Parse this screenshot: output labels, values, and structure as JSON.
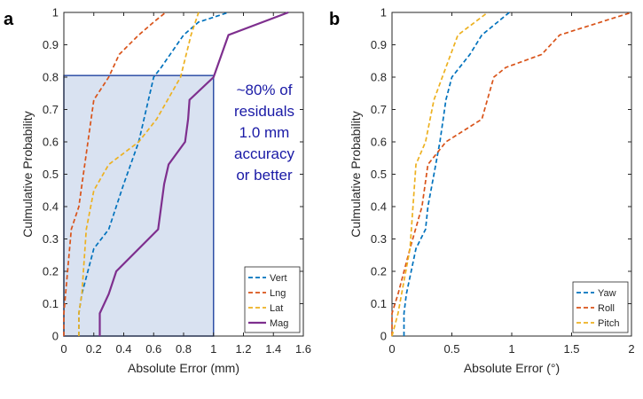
{
  "chart_data": [
    {
      "panel": "a",
      "type": "line",
      "xlabel": "Absolute Error (mm)",
      "ylabel": "Culmulative Probability",
      "xlim": [
        0,
        1.6
      ],
      "ylim": [
        0,
        1
      ],
      "xticks": [
        "0",
        "0.2",
        "0.4",
        "0.6",
        "0.8",
        "1",
        "1.2",
        "1.4",
        "1.6"
      ],
      "yticks": [
        "0",
        "0.1",
        "0.2",
        "0.3",
        "0.4",
        "0.5",
        "0.6",
        "0.7",
        "0.8",
        "0.9",
        "1"
      ],
      "annotation": [
        "~80% of",
        "residuals",
        "1.0 mm",
        "accuracy",
        "or better"
      ],
      "highlight_region": {
        "x": [
          0,
          1.0
        ],
        "y": [
          0,
          0.805
        ],
        "fill": "#d9e2f1",
        "stroke": "#2e4fa6"
      },
      "legend_position": "bottom-right",
      "series": [
        {
          "name": "Vert",
          "color": "#0072BD",
          "dash": "dashed",
          "points": [
            [
              0.1,
              0
            ],
            [
              0.1,
              0.07
            ],
            [
              0.12,
              0.13
            ],
            [
              0.2,
              0.27
            ],
            [
              0.3,
              0.33
            ],
            [
              0.4,
              0.47
            ],
            [
              0.5,
              0.6
            ],
            [
              0.6,
              0.8
            ],
            [
              0.65,
              0.83
            ],
            [
              0.8,
              0.93
            ],
            [
              0.9,
              0.97
            ],
            [
              1.1,
              1.0
            ]
          ]
        },
        {
          "name": "Lng",
          "color": "#D95319",
          "dash": "dashed",
          "points": [
            [
              0,
              0
            ],
            [
              0,
              0.07
            ],
            [
              0.05,
              0.33
            ],
            [
              0.1,
              0.4
            ],
            [
              0.2,
              0.73
            ],
            [
              0.3,
              0.8
            ],
            [
              0.37,
              0.87
            ],
            [
              0.5,
              0.93
            ],
            [
              0.6,
              0.97
            ],
            [
              0.68,
              1.0
            ]
          ]
        },
        {
          "name": "Lat",
          "color": "#EDB120",
          "dash": "dashed",
          "points": [
            [
              0.1,
              0
            ],
            [
              0.1,
              0.07
            ],
            [
              0.12,
              0.13
            ],
            [
              0.15,
              0.33
            ],
            [
              0.2,
              0.45
            ],
            [
              0.3,
              0.53
            ],
            [
              0.5,
              0.6
            ],
            [
              0.62,
              0.67
            ],
            [
              0.78,
              0.8
            ],
            [
              0.85,
              0.93
            ],
            [
              0.9,
              1.0
            ]
          ]
        },
        {
          "name": "Mag",
          "color": "#7E2F8E",
          "dash": "solid",
          "points": [
            [
              0.24,
              0
            ],
            [
              0.24,
              0.07
            ],
            [
              0.3,
              0.13
            ],
            [
              0.35,
              0.2
            ],
            [
              0.63,
              0.33
            ],
            [
              0.67,
              0.47
            ],
            [
              0.7,
              0.53
            ],
            [
              0.81,
              0.6
            ],
            [
              0.83,
              0.67
            ],
            [
              0.84,
              0.73
            ],
            [
              1.0,
              0.8
            ],
            [
              1.1,
              0.93
            ],
            [
              1.5,
              1.0
            ]
          ]
        }
      ]
    },
    {
      "panel": "b",
      "type": "line",
      "xlabel": "Absolute Error (°)",
      "ylabel": "Culmulative Probability",
      "xlim": [
        0,
        2
      ],
      "ylim": [
        0,
        1
      ],
      "xticks": [
        "0",
        "0.5",
        "1",
        "1.5",
        "2"
      ],
      "yticks": [
        "0",
        "0.1",
        "0.2",
        "0.3",
        "0.4",
        "0.5",
        "0.6",
        "0.7",
        "0.8",
        "0.9",
        "1"
      ],
      "legend_position": "bottom-right",
      "series": [
        {
          "name": "Yaw",
          "color": "#0072BD",
          "dash": "dashed",
          "points": [
            [
              0.1,
              0
            ],
            [
              0.1,
              0.07
            ],
            [
              0.12,
              0.13
            ],
            [
              0.2,
              0.27
            ],
            [
              0.28,
              0.33
            ],
            [
              0.3,
              0.4
            ],
            [
              0.35,
              0.5
            ],
            [
              0.4,
              0.6
            ],
            [
              0.45,
              0.73
            ],
            [
              0.5,
              0.8
            ],
            [
              0.65,
              0.87
            ],
            [
              0.75,
              0.93
            ],
            [
              0.98,
              1.0
            ]
          ]
        },
        {
          "name": "Roll",
          "color": "#D95319",
          "dash": "dashed",
          "points": [
            [
              0,
              0
            ],
            [
              0,
              0.07
            ],
            [
              0.05,
              0.13
            ],
            [
              0.15,
              0.27
            ],
            [
              0.25,
              0.4
            ],
            [
              0.3,
              0.53
            ],
            [
              0.45,
              0.6
            ],
            [
              0.75,
              0.67
            ],
            [
              0.85,
              0.8
            ],
            [
              0.95,
              0.83
            ],
            [
              1.25,
              0.87
            ],
            [
              1.4,
              0.93
            ],
            [
              2.0,
              1.0
            ]
          ]
        },
        {
          "name": "Pitch",
          "color": "#EDB120",
          "dash": "dashed",
          "points": [
            [
              0,
              0
            ],
            [
              0.05,
              0.07
            ],
            [
              0.08,
              0.13
            ],
            [
              0.15,
              0.27
            ],
            [
              0.2,
              0.53
            ],
            [
              0.28,
              0.6
            ],
            [
              0.35,
              0.73
            ],
            [
              0.42,
              0.8
            ],
            [
              0.55,
              0.93
            ],
            [
              0.8,
              1.0
            ]
          ]
        }
      ]
    }
  ],
  "panel_letters": [
    "a",
    "b"
  ]
}
